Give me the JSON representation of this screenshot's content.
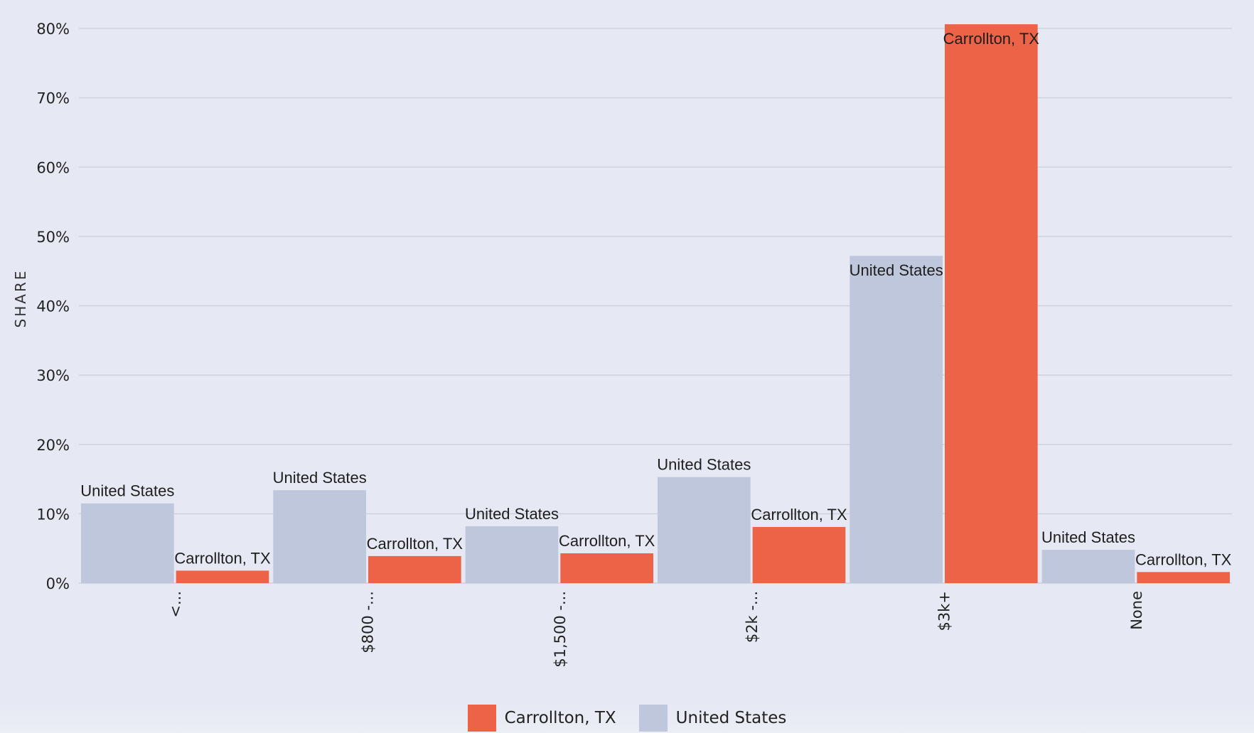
{
  "chart_data": {
    "type": "bar",
    "title": "",
    "xlabel": "",
    "ylabel": "SHARE",
    "ylim": [
      0,
      80
    ],
    "yticks": [
      0,
      10,
      20,
      30,
      40,
      50,
      60,
      70,
      80
    ],
    "ytick_labels": [
      "0%",
      "10%",
      "20%",
      "30%",
      "40%",
      "50%",
      "60%",
      "70%",
      "80%"
    ],
    "grid": true,
    "categories": [
      "<...",
      "$800 -...",
      "$1,500 -...",
      "$2k -...",
      "$3k+",
      "None"
    ],
    "series": [
      {
        "name": "United States",
        "color": "#bfc7dc",
        "values": [
          11.5,
          13.4,
          8.2,
          15.3,
          47.2,
          4.8
        ]
      },
      {
        "name": "Carrollton, TX",
        "color": "#ec6347",
        "values": [
          1.8,
          3.9,
          4.3,
          8.1,
          80.6,
          1.6
        ]
      }
    ],
    "legend": {
      "position": "bottom-center",
      "items": [
        {
          "label": "Carrollton, TX",
          "color": "#ec6347"
        },
        {
          "label": "United States",
          "color": "#bfc7dc"
        }
      ]
    }
  }
}
